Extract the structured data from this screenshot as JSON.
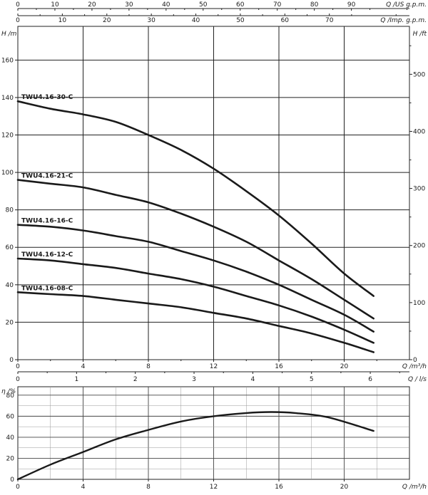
{
  "chart_data": [
    {
      "type": "line",
      "title": "",
      "x_axes": {
        "bottom": {
          "label": "Q /m³/h",
          "ticks": [
            "0",
            "4",
            "8",
            "12",
            "16",
            "20"
          ],
          "range": [
            0,
            24
          ]
        },
        "top_us": {
          "label": "Q /US g.p.m.",
          "ticks": [
            "0",
            "10",
            "20",
            "30",
            "40",
            "50",
            "60",
            "70",
            "80",
            "90"
          ],
          "range": [
            0,
            105.67
          ]
        },
        "top_imp": {
          "label": "Q /Imp. g.p.m.",
          "ticks": [
            "0",
            "10",
            "20",
            "30",
            "40",
            "50",
            "60",
            "70"
          ],
          "range": [
            0,
            88.0
          ]
        },
        "lower_ls": {
          "label": "Q / l/s",
          "ticks": [
            "0",
            "1",
            "2",
            "3",
            "4",
            "5",
            "6"
          ],
          "range": [
            0,
            6.667
          ]
        }
      },
      "y_axes": {
        "left": {
          "label": "H /m",
          "ticks": [
            "0",
            "20",
            "40",
            "60",
            "80",
            "100",
            "120",
            "140",
            "160"
          ],
          "range": [
            0,
            178
          ]
        },
        "right": {
          "label": "H /ft",
          "ticks": [
            "0",
            "100",
            "200",
            "300",
            "400",
            "500"
          ],
          "range": [
            0,
            584
          ]
        }
      },
      "grid": true,
      "series": [
        {
          "name": "TWU4.16-30-C",
          "x": [
            0,
            2,
            4,
            6,
            8,
            10,
            12,
            14,
            16,
            18,
            20,
            21.8
          ],
          "y": [
            138,
            134,
            131,
            127,
            120,
            112,
            102,
            90,
            77,
            62,
            46,
            34
          ]
        },
        {
          "name": "TWU4.16-21-C",
          "x": [
            0,
            2,
            4,
            6,
            8,
            10,
            12,
            14,
            16,
            18,
            20,
            21.8
          ],
          "y": [
            96,
            94,
            92,
            88,
            84,
            78,
            71,
            63,
            53,
            43,
            32,
            22
          ]
        },
        {
          "name": "TWU4.16-16-C",
          "x": [
            0,
            2,
            4,
            6,
            8,
            10,
            12,
            14,
            16,
            18,
            20,
            21.8
          ],
          "y": [
            72,
            71,
            69,
            66,
            63,
            58,
            53,
            47,
            40,
            32,
            24,
            15
          ]
        },
        {
          "name": "TWU4.16-12-C",
          "x": [
            0,
            2,
            4,
            6,
            8,
            10,
            12,
            14,
            16,
            18,
            20,
            21.8
          ],
          "y": [
            54,
            53,
            51,
            49,
            46,
            43,
            39,
            34,
            29,
            23,
            16,
            9
          ]
        },
        {
          "name": "TWU4.16-08-C",
          "x": [
            0,
            2,
            4,
            6,
            8,
            10,
            12,
            14,
            16,
            18,
            20,
            21.8
          ],
          "y": [
            36,
            35,
            34,
            32,
            30,
            28,
            25,
            22,
            18,
            14,
            9,
            4
          ]
        }
      ]
    },
    {
      "type": "line",
      "title": "",
      "xlabel": "Q /m³/h",
      "xticks": [
        "0",
        "4",
        "8",
        "12",
        "16",
        "20"
      ],
      "xlim": [
        0,
        24
      ],
      "ylabel": "η /%",
      "yticks": [
        "0",
        "20",
        "40",
        "60",
        "80"
      ],
      "ylim": [
        0,
        88
      ],
      "grid": true,
      "series": [
        {
          "x": [
            0,
            2,
            4,
            6,
            8,
            10,
            12,
            14,
            15.5,
            17,
            19,
            21.8
          ],
          "y": [
            0,
            14,
            26,
            38,
            47,
            55,
            60,
            63,
            64,
            63,
            59,
            46
          ]
        }
      ]
    }
  ]
}
